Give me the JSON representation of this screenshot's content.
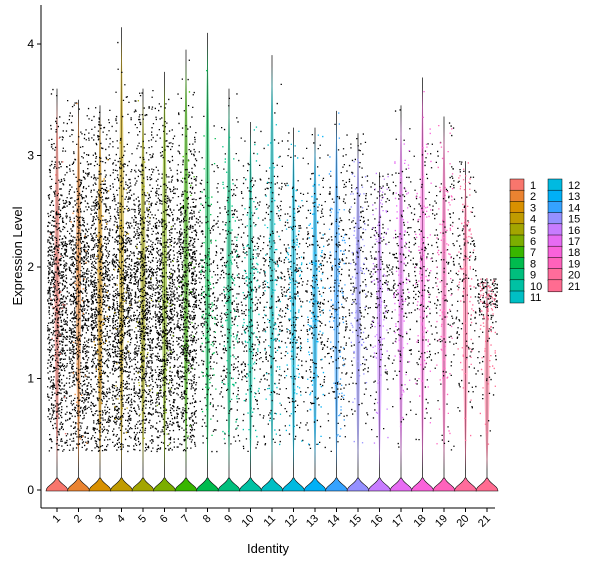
{
  "chart_data": {
    "type": "violin",
    "xlabel": "Identity",
    "ylabel": "Expression Level",
    "ylim": [
      -0.2,
      4.15
    ],
    "yticks": [
      0,
      1,
      2,
      3,
      4
    ],
    "grid": false,
    "legend_placement": "right",
    "categories": [
      "1",
      "2",
      "3",
      "4",
      "5",
      "6",
      "7",
      "8",
      "9",
      "10",
      "11",
      "12",
      "13",
      "14",
      "15",
      "16",
      "17",
      "18",
      "19",
      "20",
      "21"
    ],
    "series": [
      {
        "name": "1",
        "color": "#F8766D",
        "max": 3.6
      },
      {
        "name": "2",
        "color": "#EA8331",
        "max": 3.5
      },
      {
        "name": "3",
        "color": "#D89000",
        "max": 3.45
      },
      {
        "name": "4",
        "color": "#C09B00",
        "max": 4.15
      },
      {
        "name": "5",
        "color": "#A3A500",
        "max": 3.6
      },
      {
        "name": "6",
        "color": "#7CAE00",
        "max": 3.75
      },
      {
        "name": "7",
        "color": "#39B600",
        "max": 3.95
      },
      {
        "name": "8",
        "color": "#00BB4E",
        "max": 4.1
      },
      {
        "name": "9",
        "color": "#00BF7D",
        "max": 3.6
      },
      {
        "name": "10",
        "color": "#00C1A3",
        "max": 3.3
      },
      {
        "name": "11",
        "color": "#00BFC4",
        "max": 3.9
      },
      {
        "name": "12",
        "color": "#00BAE0",
        "max": 3.25
      },
      {
        "name": "13",
        "color": "#00B0F6",
        "max": 3.25
      },
      {
        "name": "14",
        "color": "#35A2FF",
        "max": 3.4
      },
      {
        "name": "15",
        "color": "#9590FF",
        "max": 3.2
      },
      {
        "name": "16",
        "color": "#C77CFF",
        "max": 2.85
      },
      {
        "name": "17",
        "color": "#E76BF3",
        "max": 3.45
      },
      {
        "name": "18",
        "color": "#FA62DB",
        "max": 3.7
      },
      {
        "name": "19",
        "color": "#FF62BC",
        "max": 3.35
      },
      {
        "name": "20",
        "color": "#FF6C9B",
        "max": 2.95
      },
      {
        "name": "21",
        "color": "#FF6C91",
        "max": 1.9
      }
    ],
    "legend_columns": [
      [
        "1",
        "2",
        "3",
        "4",
        "5",
        "6",
        "7",
        "8",
        "9",
        "10",
        "11"
      ],
      [
        "12",
        "13",
        "14",
        "15",
        "16",
        "17",
        "18",
        "19",
        "20",
        "21"
      ]
    ]
  }
}
